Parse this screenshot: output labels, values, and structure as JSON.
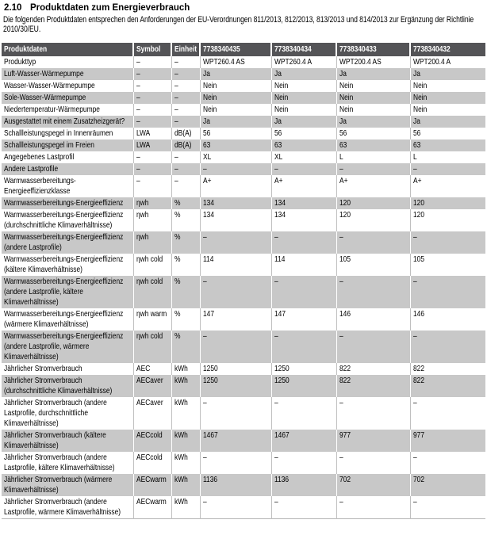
{
  "page": {
    "section_number": "2.10",
    "section_title": "Produktdaten zum Energieverbrauch",
    "intro": "Die folgenden Produktdaten entsprechen den Anforderungen der EU-Verordnungen 811/2013, 812/2013, 813/2013 und 814/2013 zur Ergänzung der Richtlinie 2010/30/EU."
  },
  "colors": {
    "header_bg": "#545457",
    "header_text": "#ffffff",
    "row_alt_bg": "#c8c8c8",
    "body_text": "#000000"
  },
  "table": {
    "headers": [
      "Produktdaten",
      "Symbol",
      "Einheit",
      "7738340435",
      "7738340434",
      "7738340433",
      "7738340432"
    ],
    "rows": [
      {
        "label": "Produkttyp",
        "symbol": "–",
        "unit": "–",
        "values": [
          "WPT260.4 AS",
          "WPT260.4 A",
          "WPT200.4 AS",
          "WPT200.4 A"
        ]
      },
      {
        "label": "Luft-Wasser-Wärmepumpe",
        "symbol": "–",
        "unit": "–",
        "values": [
          "Ja",
          "Ja",
          "Ja",
          "Ja"
        ]
      },
      {
        "label": "Wasser-Wasser-Wärmepumpe",
        "symbol": "–",
        "unit": "–",
        "values": [
          "Nein",
          "Nein",
          "Nein",
          "Nein"
        ]
      },
      {
        "label": "Sole-Wasser-Wärmepumpe",
        "symbol": "–",
        "unit": "–",
        "values": [
          "Nein",
          "Nein",
          "Nein",
          "Nein"
        ]
      },
      {
        "label": "Niedertemperatur-Wärmepumpe",
        "symbol": "–",
        "unit": "–",
        "values": [
          "Nein",
          "Nein",
          "Nein",
          "Nein"
        ]
      },
      {
        "label": "Ausgestattet mit einem Zusatzheizgerät?",
        "symbol": "–",
        "unit": "–",
        "values": [
          "Ja",
          "Ja",
          "Ja",
          "Ja"
        ]
      },
      {
        "label": "Schallleistungspegel in Innenräumen",
        "symbol": "LWA",
        "unit": "dB(A)",
        "values": [
          "56",
          "56",
          "56",
          "56"
        ]
      },
      {
        "label": "Schallleistungspegel im Freien",
        "symbol": "LWA",
        "unit": "dB(A)",
        "values": [
          "63",
          "63",
          "63",
          "63"
        ]
      },
      {
        "label": "Angegebenes Lastprofil",
        "symbol": "–",
        "unit": "–",
        "values": [
          "XL",
          "XL",
          "L",
          "L"
        ]
      },
      {
        "label": "Andere Lastprofile",
        "symbol": "–",
        "unit": "–",
        "values": [
          "–",
          "–",
          "–",
          "–"
        ]
      },
      {
        "label": "Warmwasserbereitungs-Energieeffizienzklasse",
        "symbol": "–",
        "unit": "–",
        "values": [
          "A+",
          "A+",
          "A+",
          "A+"
        ]
      },
      {
        "label": "Warmwasserbereitungs-Energieeffizienz",
        "symbol": "ηwh",
        "unit": "%",
        "values": [
          "134",
          "134",
          "120",
          "120"
        ]
      },
      {
        "label": "Warmwasserbereitungs-Energieeffizienz (durchschnittliche Klimaverhältnisse)",
        "symbol": "ηwh",
        "unit": "%",
        "values": [
          "134",
          "134",
          "120",
          "120"
        ]
      },
      {
        "label": "Warmwasserbereitungs-Energieeffizienz (andere Lastprofile)",
        "symbol": "ηwh",
        "unit": "%",
        "values": [
          "–",
          "–",
          "–",
          "–"
        ]
      },
      {
        "label": "Warmwasserbereitungs-Energieeffizienz (kältere Klimaverhältnisse)",
        "symbol": "ηwh cold",
        "unit": "%",
        "values": [
          "114",
          "114",
          "105",
          "105"
        ]
      },
      {
        "label": "Warmwasserbereitungs-Energieeffizienz (andere Lastprofile, kältere Klimaverhältnisse)",
        "symbol": "ηwh cold",
        "unit": "%",
        "values": [
          "–",
          "–",
          "–",
          "–"
        ]
      },
      {
        "label": "Warmwasserbereitungs-Energieeffizienz (wärmere Klimaverhältnisse)",
        "symbol": "ηwh warm",
        "unit": "%",
        "values": [
          "147",
          "147",
          "146",
          "146"
        ]
      },
      {
        "label": "Warmwasserbereitungs-Energieeffizienz (andere Lastprofile, wärmere Klimaverhältnisse)",
        "symbol": "ηwh cold",
        "unit": "%",
        "values": [
          "–",
          "–",
          "–",
          "–"
        ]
      },
      {
        "label": "Jährlicher Stromverbrauch",
        "symbol": "AEC",
        "unit": "kWh",
        "values": [
          "1250",
          "1250",
          "822",
          "822"
        ]
      },
      {
        "label": "Jährlicher Stromverbrauch (durchschnittliche Klimaverhältnisse)",
        "symbol": "AECaver",
        "unit": "kWh",
        "values": [
          "1250",
          "1250",
          "822",
          "822"
        ]
      },
      {
        "label": "Jährlicher Stromverbrauch (andere Lastprofile, durchschnittliche Klimaverhältnisse)",
        "symbol": "AECaver",
        "unit": "kWh",
        "values": [
          "–",
          "–",
          "–",
          "–"
        ]
      },
      {
        "label": "Jährlicher Stromverbrauch (kältere Klimaverhältnisse)",
        "symbol": "AECcold",
        "unit": "kWh",
        "values": [
          "1467",
          "1467",
          "977",
          "977"
        ]
      },
      {
        "label": "Jährlicher Stromverbrauch (andere Lastprofile, kältere Klimaverhältnisse)",
        "symbol": "AECcold",
        "unit": "kWh",
        "values": [
          "–",
          "–",
          "–",
          "–"
        ]
      },
      {
        "label": "Jährlicher Stromverbrauch (wärmere Klimaverhältnisse)",
        "symbol": "AECwarm",
        "unit": "kWh",
        "values": [
          "1136",
          "1136",
          "702",
          "702"
        ]
      },
      {
        "label": "Jährlicher Stromverbrauch (andere Lastprofile, wärmere Klimaverhältnisse)",
        "symbol": "AECwarm",
        "unit": "kWh",
        "values": [
          "–",
          "–",
          "–",
          "–"
        ]
      }
    ]
  }
}
